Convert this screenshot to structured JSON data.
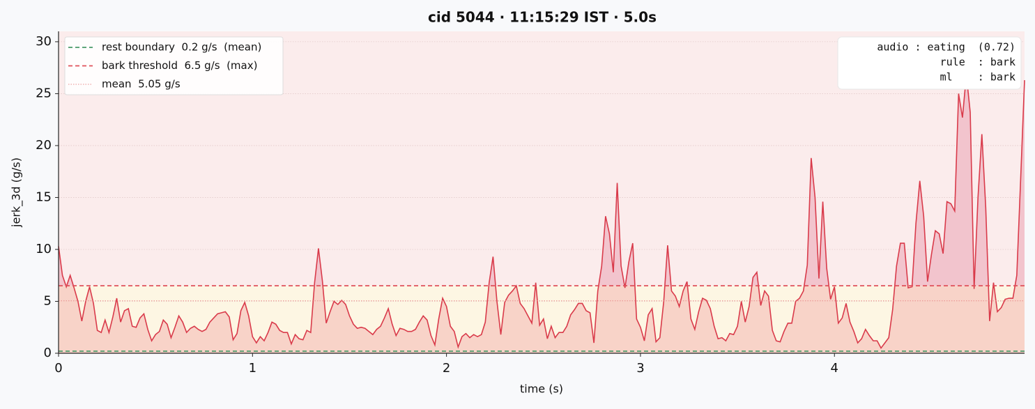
{
  "chart_data": {
    "type": "line",
    "title": "cid 5044  ·  11:15:29 IST  ·  5.0s",
    "x_label": "time (s)",
    "y_label": "jerk_3d (g/s)",
    "xlim": [
      0,
      4.98
    ],
    "ylim": [
      0,
      31
    ],
    "xticks": [
      0,
      1,
      2,
      3,
      4
    ],
    "yticks": [
      0,
      5,
      10,
      15,
      20,
      25,
      30
    ],
    "grid": true,
    "x": [
      0,
      0.02,
      0.04,
      0.06,
      0.08,
      0.1,
      0.12,
      0.14,
      0.16,
      0.18,
      0.2,
      0.22,
      0.24,
      0.26,
      0.28,
      0.3,
      0.32,
      0.34,
      0.36,
      0.38,
      0.4,
      0.42,
      0.44,
      0.46,
      0.48,
      0.5,
      0.52,
      0.54,
      0.56,
      0.58,
      0.6,
      0.62,
      0.64,
      0.66,
      0.68,
      0.7,
      0.72,
      0.74,
      0.76,
      0.78,
      0.8,
      0.82,
      0.84,
      0.86,
      0.88,
      0.9,
      0.92,
      0.94,
      0.96,
      0.98,
      1,
      1.02,
      1.04,
      1.06,
      1.08,
      1.1,
      1.12,
      1.14,
      1.16,
      1.18,
      1.2,
      1.22,
      1.24,
      1.26,
      1.28,
      1.3,
      1.32,
      1.34,
      1.36,
      1.38,
      1.4,
      1.42,
      1.44,
      1.46,
      1.48,
      1.5,
      1.52,
      1.54,
      1.56,
      1.58,
      1.6,
      1.62,
      1.64,
      1.66,
      1.68,
      1.7,
      1.72,
      1.74,
      1.76,
      1.78,
      1.8,
      1.82,
      1.84,
      1.86,
      1.88,
      1.9,
      1.92,
      1.94,
      1.96,
      1.98,
      2,
      2.02,
      2.04,
      2.06,
      2.08,
      2.1,
      2.12,
      2.14,
      2.16,
      2.18,
      2.2,
      2.22,
      2.24,
      2.26,
      2.28,
      2.3,
      2.32,
      2.34,
      2.36,
      2.38,
      2.4,
      2.42,
      2.44,
      2.46,
      2.48,
      2.5,
      2.52,
      2.54,
      2.56,
      2.58,
      2.6,
      2.62,
      2.64,
      2.66,
      2.68,
      2.7,
      2.72,
      2.74,
      2.76,
      2.78,
      2.8,
      2.82,
      2.84,
      2.86,
      2.88,
      2.9,
      2.92,
      2.94,
      2.96,
      2.98,
      3,
      3.02,
      3.04,
      3.06,
      3.08,
      3.1,
      3.12,
      3.14,
      3.16,
      3.18,
      3.2,
      3.22,
      3.24,
      3.26,
      3.28,
      3.3,
      3.32,
      3.34,
      3.36,
      3.38,
      3.4,
      3.42,
      3.44,
      3.46,
      3.48,
      3.5,
      3.52,
      3.54,
      3.56,
      3.58,
      3.6,
      3.62,
      3.64,
      3.66,
      3.68,
      3.7,
      3.72,
      3.74,
      3.76,
      3.78,
      3.8,
      3.82,
      3.84,
      3.86,
      3.88,
      3.9,
      3.92,
      3.94,
      3.96,
      3.98,
      4,
      4.02,
      4.04,
      4.06,
      4.08,
      4.1,
      4.12,
      4.14,
      4.16,
      4.18,
      4.2,
      4.22,
      4.24,
      4.26,
      4.28,
      4.3,
      4.32,
      4.34,
      4.36,
      4.38,
      4.4,
      4.42,
      4.44,
      4.46,
      4.48,
      4.5,
      4.52,
      4.54,
      4.56,
      4.58,
      4.6,
      4.62,
      4.64,
      4.66,
      4.68,
      4.7,
      4.72,
      4.74,
      4.76,
      4.78,
      4.8,
      4.82,
      4.84,
      4.86,
      4.88,
      4.9,
      4.92,
      4.94,
      4.96,
      4.98
    ],
    "series": [
      {
        "color": "#d93a4a",
        "values": [
          10.3,
          7.5,
          6.4,
          7.5,
          6.3,
          5.0,
          3.1,
          5.0,
          6.4,
          4.8,
          2.2,
          2.0,
          3.2,
          2.0,
          3.5,
          5.3,
          3.0,
          4.1,
          4.3,
          2.6,
          2.5,
          3.4,
          3.8,
          2.3,
          1.2,
          1.8,
          2.1,
          3.2,
          2.8,
          1.5,
          2.5,
          3.6,
          3.0,
          2.0,
          2.4,
          2.6,
          2.3,
          2.1,
          2.3,
          3.0,
          3.4,
          3.8,
          3.9,
          4.0,
          3.5,
          1.3,
          1.9,
          4.1,
          4.9,
          3.6,
          1.6,
          1.0,
          1.6,
          1.2,
          2.0,
          3.0,
          2.8,
          2.2,
          2.0,
          2.0,
          0.9,
          1.8,
          1.4,
          1.3,
          2.2,
          2.0,
          6.8,
          10.1,
          7.0,
          2.9,
          4.0,
          5.0,
          4.7,
          5.1,
          4.7,
          3.6,
          2.8,
          2.4,
          2.5,
          2.4,
          2.1,
          1.8,
          2.3,
          2.6,
          3.4,
          4.3,
          2.8,
          1.7,
          2.4,
          2.3,
          2.1,
          2.1,
          2.3,
          3.0,
          3.6,
          3.2,
          1.7,
          0.8,
          3.3,
          5.3,
          4.5,
          2.6,
          2.1,
          0.6,
          1.6,
          1.9,
          1.5,
          1.8,
          1.6,
          1.8,
          3.0,
          6.8,
          9.3,
          5.0,
          1.8,
          4.9,
          5.6,
          6.0,
          6.5,
          4.8,
          4.3,
          3.6,
          2.9,
          6.8,
          2.7,
          3.3,
          1.4,
          2.6,
          1.5,
          2.0,
          2.0,
          2.6,
          3.7,
          4.2,
          4.8,
          4.8,
          4.1,
          3.9,
          1.0,
          6.0,
          8.4,
          13.2,
          11.5,
          7.8,
          16.4,
          8.4,
          6.3,
          8.8,
          10.6,
          3.3,
          2.5,
          1.2,
          3.7,
          4.3,
          1.1,
          1.5,
          5.0,
          10.4,
          6.0,
          5.5,
          4.5,
          6.0,
          6.9,
          3.3,
          2.3,
          4.0,
          5.3,
          5.1,
          4.3,
          2.6,
          1.4,
          1.5,
          1.2,
          1.9,
          1.8,
          2.6,
          5.0,
          3.0,
          4.5,
          7.3,
          7.8,
          4.6,
          6.0,
          5.5,
          2.2,
          1.2,
          1.1,
          2.1,
          2.9,
          2.9,
          5.0,
          5.3,
          6.0,
          8.5,
          18.8,
          15.0,
          7.2,
          14.6,
          8.2,
          5.2,
          6.4,
          2.9,
          3.4,
          4.8,
          3.0,
          2.1,
          1.0,
          1.4,
          2.3,
          1.7,
          1.2,
          1.2,
          0.5,
          1.0,
          1.5,
          4.2,
          8.4,
          10.6,
          10.6,
          6.3,
          6.4,
          12.5,
          16.6,
          13.2,
          6.9,
          9.5,
          11.8,
          11.5,
          9.6,
          14.6,
          14.4,
          13.7,
          25.0,
          22.7,
          26.8,
          23.2,
          6.2,
          15.0,
          21.1,
          14.0,
          3.1,
          6.8,
          4.0,
          4.4,
          5.2,
          5.3,
          5.3,
          7.5,
          16.8,
          26.3
        ]
      }
    ],
    "reference_lines": [
      {
        "label": "rest boundary  0.2 g/s  (mean)",
        "value": 0.2,
        "color": "#4a9a6a",
        "style": "dashed"
      },
      {
        "label": "bark threshold  6.5 g/s  (max)",
        "value": 6.5,
        "color": "#e0505a",
        "style": "dashed"
      },
      {
        "label": "mean  5.05 g/s",
        "value": 5.05,
        "color": "#e88a8a",
        "style": "dotted"
      }
    ],
    "legend_position": "upper left",
    "annotation": [
      "audio : eating  (0.72)",
      "rule  : bark",
      "ml    : bark"
    ]
  }
}
